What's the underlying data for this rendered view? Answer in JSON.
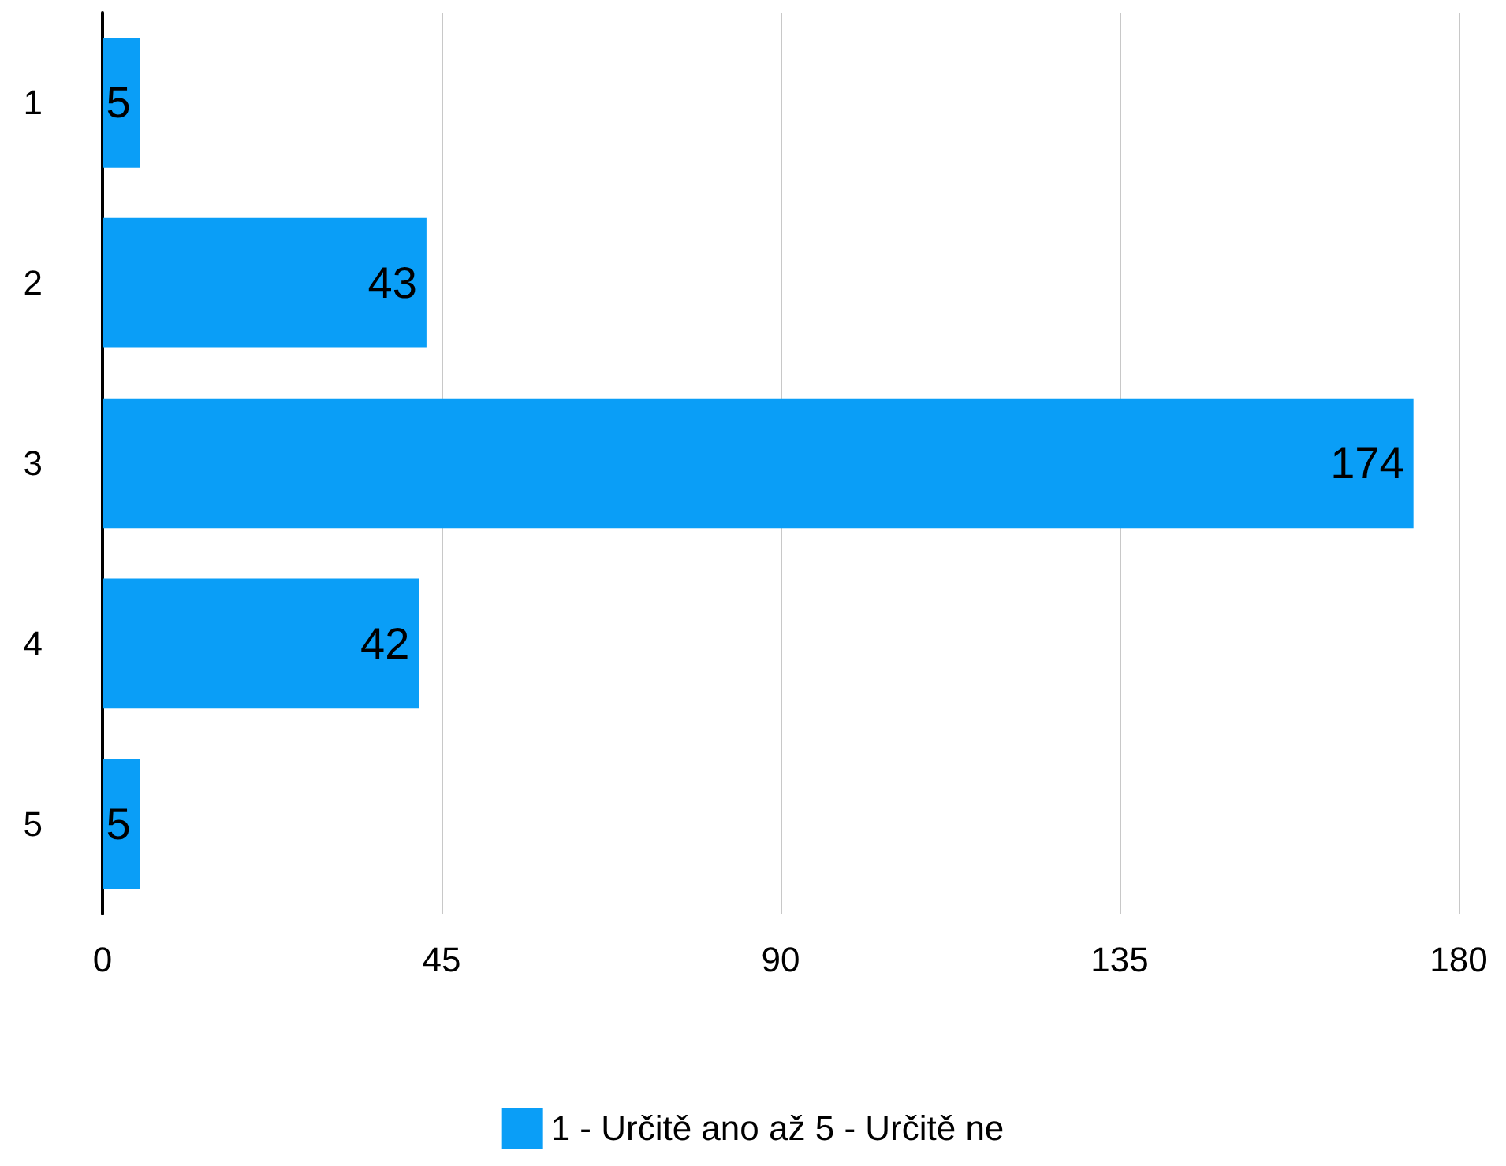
{
  "chart_data": {
    "type": "bar",
    "orientation": "horizontal",
    "categories": [
      "1",
      "2",
      "3",
      "4",
      "5"
    ],
    "series": [
      {
        "name": "1 - Určitě ano až 5 - Určitě ne",
        "color": "#0a9ef7",
        "values": [
          5,
          43,
          174,
          42,
          5
        ]
      }
    ],
    "xlim": [
      0,
      180
    ],
    "xticks": [
      0,
      45,
      90,
      135,
      180
    ],
    "grid": "x",
    "legend": "bottom",
    "data_labels": true
  }
}
